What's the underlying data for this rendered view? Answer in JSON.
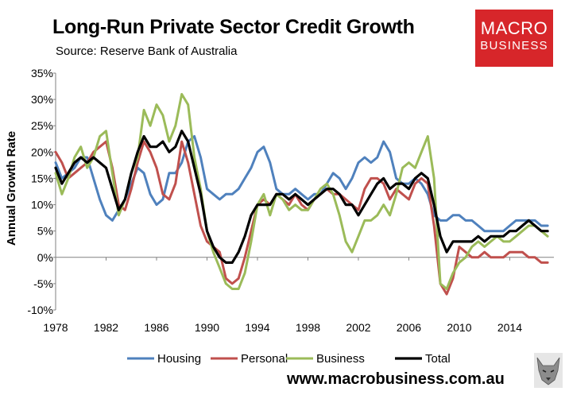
{
  "header": {
    "title": "Long-Run Private Sector Credit Growth",
    "subtitle": "Source: Reserve Bank of Australia"
  },
  "logo": {
    "line1": "MACRO",
    "line2": "BUSINESS",
    "color": "#d7262a"
  },
  "footer": {
    "website": "www.macrobusiness.com.au"
  },
  "chart_data": {
    "type": "line",
    "title": "Long-Run Private Sector Credit Growth",
    "ylabel": "Annual Growth Rate",
    "xlabel": "",
    "xlim": [
      1978,
      2017.5
    ],
    "ylim": [
      -10,
      35
    ],
    "grid": false,
    "legend_position": "bottom",
    "x_ticks": [
      "1978",
      "1982",
      "1986",
      "1990",
      "1994",
      "1998",
      "2002",
      "2006",
      "2010",
      "2014"
    ],
    "y_ticks": [
      "35%",
      "30%",
      "25%",
      "20%",
      "15%",
      "10%",
      "5%",
      "0%",
      "-5%",
      "-10%"
    ],
    "series": [
      {
        "name": "Housing",
        "color": "#4f81bd",
        "x": [
          1978,
          1978.5,
          1979,
          1979.5,
          1980,
          1980.5,
          1981,
          1981.5,
          1982,
          1982.5,
          1983,
          1983.5,
          1984,
          1984.5,
          1985,
          1985.5,
          1986,
          1986.5,
          1987,
          1987.5,
          1988,
          1988.5,
          1989,
          1989.5,
          1990,
          1990.5,
          1991,
          1991.5,
          1992,
          1992.5,
          1993,
          1993.5,
          1994,
          1994.5,
          1995,
          1995.5,
          1996,
          1996.5,
          1997,
          1997.5,
          1998,
          1998.5,
          1999,
          1999.5,
          2000,
          2000.5,
          2001,
          2001.5,
          2002,
          2002.5,
          2003,
          2003.5,
          2004,
          2004.5,
          2005,
          2005.5,
          2006,
          2006.5,
          2007,
          2007.5,
          2008,
          2008.5,
          2009,
          2009.5,
          2010,
          2010.5,
          2011,
          2011.5,
          2012,
          2012.5,
          2013,
          2013.5,
          2014,
          2014.5,
          2015,
          2015.5,
          2016,
          2016.5,
          2017
        ],
        "values": [
          18,
          15,
          16,
          17,
          19,
          19,
          15,
          11,
          8,
          7,
          9,
          11,
          14,
          17,
          16,
          12,
          10,
          11,
          16,
          16,
          18,
          22,
          23,
          19,
          13,
          12,
          11,
          12,
          12,
          13,
          15,
          17,
          20,
          21,
          18,
          13,
          12,
          12,
          13,
          12,
          11,
          12,
          12,
          14,
          16,
          15,
          13,
          15,
          18,
          19,
          18,
          19,
          22,
          20,
          15,
          14,
          14,
          15,
          14,
          12,
          8,
          7,
          7,
          8,
          8,
          7,
          7,
          6,
          5,
          5,
          5,
          5,
          6,
          7,
          7,
          7,
          7,
          6,
          6
        ]
      },
      {
        "name": "Personal",
        "color": "#c0504d",
        "x": [
          1978,
          1978.5,
          1979,
          1979.5,
          1980,
          1980.5,
          1981,
          1981.5,
          1982,
          1982.5,
          1983,
          1983.5,
          1984,
          1984.5,
          1985,
          1985.5,
          1986,
          1986.5,
          1987,
          1987.5,
          1988,
          1988.5,
          1989,
          1989.5,
          1990,
          1990.5,
          1991,
          1991.5,
          1992,
          1992.5,
          1993,
          1993.5,
          1994,
          1994.5,
          1995,
          1995.5,
          1996,
          1996.5,
          1997,
          1997.5,
          1998,
          1998.5,
          1999,
          1999.5,
          2000,
          2000.5,
          2001,
          2001.5,
          2002,
          2002.5,
          2003,
          2003.5,
          2004,
          2004.5,
          2005,
          2005.5,
          2006,
          2006.5,
          2007,
          2007.5,
          2008,
          2008.5,
          2009,
          2009.5,
          2010,
          2010.5,
          2011,
          2011.5,
          2012,
          2012.5,
          2013,
          2013.5,
          2014,
          2014.5,
          2015,
          2015.5,
          2016,
          2016.5,
          2017
        ],
        "values": [
          20,
          18,
          15,
          16,
          17,
          18,
          20,
          21,
          22,
          17,
          10,
          9,
          13,
          18,
          22,
          20,
          17,
          12,
          11,
          14,
          22,
          18,
          12,
          6,
          3,
          2,
          1,
          -4,
          -5,
          -4,
          0,
          5,
          10,
          11,
          10,
          12,
          11,
          10,
          12,
          10,
          9,
          11,
          12,
          13,
          12,
          12,
          11,
          10,
          9,
          13,
          15,
          15,
          14,
          11,
          13,
          12,
          11,
          14,
          15,
          14,
          6,
          -5,
          -7,
          -4,
          2,
          1,
          0,
          0,
          1,
          0,
          0,
          0,
          1,
          1,
          1,
          0,
          0,
          -1,
          -1
        ]
      },
      {
        "name": "Business",
        "color": "#9bbb59",
        "x": [
          1978,
          1978.5,
          1979,
          1979.5,
          1980,
          1980.5,
          1981,
          1981.5,
          1982,
          1982.5,
          1983,
          1983.5,
          1984,
          1984.5,
          1985,
          1985.5,
          1986,
          1986.5,
          1987,
          1987.5,
          1988,
          1988.5,
          1989,
          1989.5,
          1990,
          1990.5,
          1991,
          1991.5,
          1992,
          1992.5,
          1993,
          1993.5,
          1994,
          1994.5,
          1995,
          1995.5,
          1996,
          1996.5,
          1997,
          1997.5,
          1998,
          1998.5,
          1999,
          1999.5,
          2000,
          2000.5,
          2001,
          2001.5,
          2002,
          2002.5,
          2003,
          2003.5,
          2004,
          2004.5,
          2005,
          2005.5,
          2006,
          2006.5,
          2007,
          2007.5,
          2008,
          2008.5,
          2009,
          2009.5,
          2010,
          2010.5,
          2011,
          2011.5,
          2012,
          2012.5,
          2013,
          2013.5,
          2014,
          2014.5,
          2015,
          2015.5,
          2016,
          2016.5,
          2017
        ],
        "values": [
          16,
          12,
          15,
          19,
          21,
          17,
          19,
          23,
          24,
          16,
          8,
          11,
          16,
          19,
          28,
          25,
          29,
          27,
          22,
          25,
          31,
          29,
          19,
          13,
          5,
          1,
          -2,
          -5,
          -6,
          -6,
          -3,
          3,
          10,
          12,
          8,
          12,
          11,
          9,
          10,
          9,
          9,
          11,
          13,
          14,
          12,
          8,
          3,
          1,
          4,
          7,
          7,
          8,
          10,
          8,
          12,
          17,
          18,
          17,
          20,
          23,
          15,
          -5,
          -6,
          -3,
          -1,
          0,
          2,
          3,
          2,
          3,
          4,
          3,
          3,
          4,
          5,
          6,
          6,
          5,
          4
        ]
      },
      {
        "name": "Total",
        "color": "#000000",
        "x": [
          1978,
          1978.5,
          1979,
          1979.5,
          1980,
          1980.5,
          1981,
          1981.5,
          1982,
          1982.5,
          1983,
          1983.5,
          1984,
          1984.5,
          1985,
          1985.5,
          1986,
          1986.5,
          1987,
          1987.5,
          1988,
          1988.5,
          1989,
          1989.5,
          1990,
          1990.5,
          1991,
          1991.5,
          1992,
          1992.5,
          1993,
          1993.5,
          1994,
          1994.5,
          1995,
          1995.5,
          1996,
          1996.5,
          1997,
          1997.5,
          1998,
          1998.5,
          1999,
          1999.5,
          2000,
          2000.5,
          2001,
          2001.5,
          2002,
          2002.5,
          2003,
          2003.5,
          2004,
          2004.5,
          2005,
          2005.5,
          2006,
          2006.5,
          2007,
          2007.5,
          2008,
          2008.5,
          2009,
          2009.5,
          2010,
          2010.5,
          2011,
          2011.5,
          2012,
          2012.5,
          2013,
          2013.5,
          2014,
          2014.5,
          2015,
          2015.5,
          2016,
          2016.5,
          2017
        ],
        "values": [
          17,
          14,
          16,
          18,
          19,
          18,
          19,
          18,
          17,
          13,
          9,
          11,
          16,
          20,
          23,
          21,
          21,
          22,
          20,
          21,
          24,
          22,
          17,
          12,
          5,
          2,
          0,
          -1,
          -1,
          1,
          4,
          8,
          10,
          10,
          10,
          12,
          12,
          11,
          12,
          11,
          10,
          11,
          12,
          13,
          13,
          12,
          10,
          10,
          8,
          10,
          12,
          14,
          15,
          13,
          14,
          14,
          13,
          15,
          16,
          15,
          10,
          4,
          1,
          3,
          3,
          3,
          3,
          4,
          3,
          4,
          4,
          4,
          5,
          5,
          6,
          7,
          6,
          5,
          5
        ]
      }
    ]
  }
}
